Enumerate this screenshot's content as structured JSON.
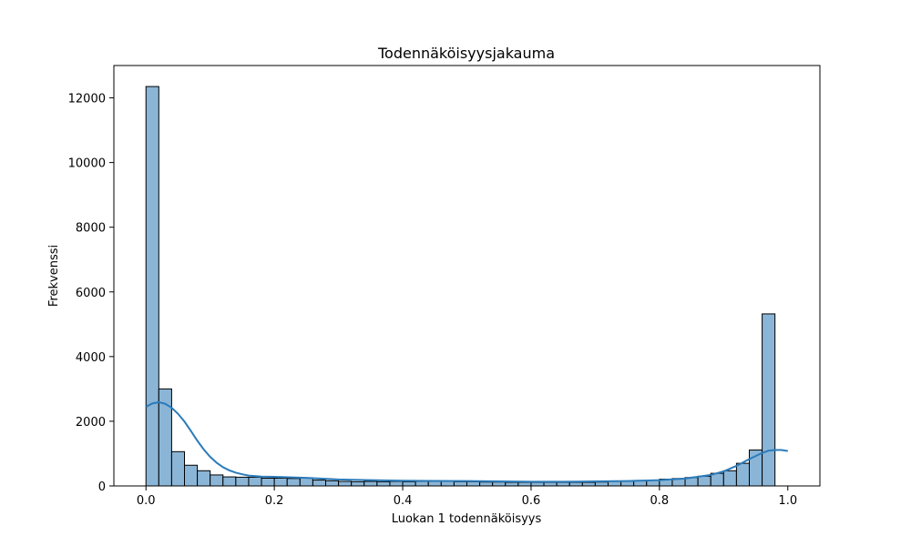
{
  "chart_data": {
    "type": "bar",
    "title": "Todennäköisyysjakauma",
    "xlabel": "Luokan 1 todennäköisyys",
    "ylabel": "Frekvenssi",
    "xlim": [
      -0.05,
      1.05
    ],
    "ylim": [
      0,
      13000
    ],
    "x_ticks": [
      0.0,
      0.2,
      0.4,
      0.6,
      0.8,
      1.0
    ],
    "x_tick_labels": [
      "0.0",
      "0.2",
      "0.4",
      "0.6",
      "0.8",
      "1.0"
    ],
    "y_ticks": [
      0,
      2000,
      4000,
      6000,
      8000,
      10000,
      12000
    ],
    "y_tick_labels": [
      "0",
      "2000",
      "4000",
      "6000",
      "8000",
      "10000",
      "12000"
    ],
    "bin_start": 0.0,
    "bin_width": 0.02,
    "values": [
      12350,
      3000,
      1060,
      640,
      470,
      340,
      280,
      270,
      270,
      240,
      240,
      230,
      240,
      180,
      160,
      140,
      130,
      140,
      130,
      140,
      130,
      140,
      140,
      140,
      130,
      130,
      120,
      120,
      110,
      110,
      110,
      110,
      110,
      110,
      110,
      120,
      140,
      140,
      170,
      180,
      210,
      230,
      260,
      300,
      390,
      470,
      700,
      1110,
      5320
    ],
    "kde": {
      "x": [
        0.0,
        0.01,
        0.02,
        0.03,
        0.04,
        0.05,
        0.06,
        0.07,
        0.08,
        0.09,
        0.1,
        0.11,
        0.12,
        0.13,
        0.14,
        0.15,
        0.16,
        0.18,
        0.2,
        0.25,
        0.3,
        0.35,
        0.4,
        0.45,
        0.5,
        0.55,
        0.6,
        0.65,
        0.7,
        0.75,
        0.8,
        0.84,
        0.88,
        0.9,
        0.92,
        0.94,
        0.96,
        0.97,
        0.98,
        0.99,
        1.0
      ],
      "y": [
        2450,
        2550,
        2590,
        2540,
        2420,
        2230,
        1990,
        1700,
        1400,
        1130,
        900,
        720,
        580,
        480,
        410,
        360,
        320,
        290,
        280,
        250,
        200,
        180,
        160,
        155,
        150,
        140,
        130,
        130,
        140,
        150,
        180,
        230,
        340,
        450,
        620,
        830,
        1020,
        1090,
        1110,
        1110,
        1080
      ]
    },
    "bar_fill": "#8bb5d6",
    "bar_edge": "#000000",
    "kde_color": "#2b7bba",
    "grid": false,
    "legend": "none"
  }
}
